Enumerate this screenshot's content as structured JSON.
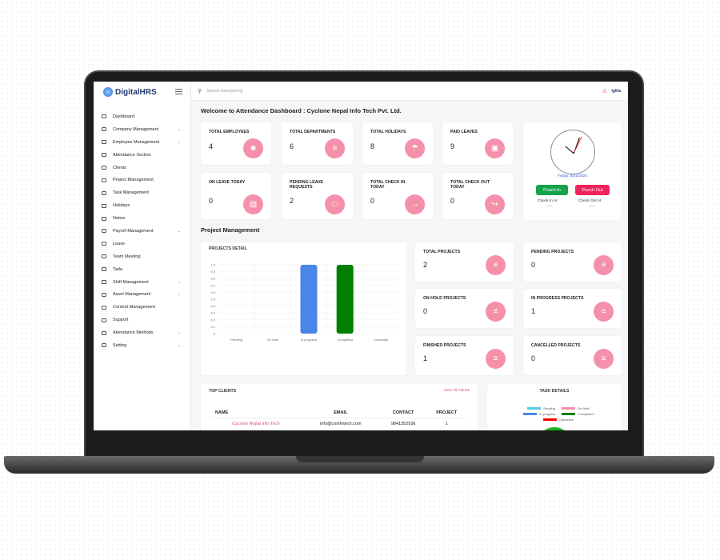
{
  "app": {
    "logo": "DigitalHRS",
    "search_placeholder": "Search menu(ctrl+q)",
    "user": "Iglita"
  },
  "sidebar": {
    "items": [
      {
        "label": "Dashboard",
        "chev": false
      },
      {
        "label": "Company Management",
        "chev": true
      },
      {
        "label": "Employee Management",
        "chev": true
      },
      {
        "label": "Attendance Section",
        "chev": false
      },
      {
        "label": "Clients",
        "chev": false
      },
      {
        "label": "Project Management",
        "chev": false
      },
      {
        "label": "Task Management",
        "chev": false
      },
      {
        "label": "Holidays",
        "chev": false
      },
      {
        "label": "Notice",
        "chev": false
      },
      {
        "label": "Payroll Management",
        "chev": true
      },
      {
        "label": "Leave",
        "chev": false
      },
      {
        "label": "Team Meeting",
        "chev": false
      },
      {
        "label": "Tada",
        "chev": false
      },
      {
        "label": "Shift Management",
        "chev": true
      },
      {
        "label": "Asset Management",
        "chev": true
      },
      {
        "label": "Content Management",
        "chev": false
      },
      {
        "label": "Support",
        "chev": false
      },
      {
        "label": "Attendance Methods",
        "chev": true
      },
      {
        "label": "Setting",
        "chev": true
      }
    ]
  },
  "welcome": "Welcome to Attendance Dashboard : Cyclone Nepal Info Tech Pvt. Ltd.",
  "stats": [
    {
      "label": "TOTAL EMPLOYEES",
      "value": "4",
      "icon": "users-icon"
    },
    {
      "label": "TOTAL DEPARTMENTS",
      "value": "6",
      "icon": "layers-icon"
    },
    {
      "label": "TOTAL HOLIDAYS",
      "value": "8",
      "icon": "umbrella-icon"
    },
    {
      "label": "PAID LEAVES",
      "value": "9",
      "icon": "document-icon"
    },
    {
      "label": "ON LEAVE TODAY",
      "value": "0",
      "icon": "file-icon"
    },
    {
      "label": "PENDING LEAVE REQUESTS",
      "value": "2",
      "icon": "message-icon"
    },
    {
      "label": "TOTAL CHECK IN TODAY",
      "value": "0",
      "icon": "login-icon"
    },
    {
      "label": "TOTAL CHECK OUT TODAY",
      "value": "0",
      "icon": "logout-icon"
    }
  ],
  "clock": {
    "date": "Friday, 5/31/2024",
    "punch_in": "Punch In",
    "punch_out": "Punch Out",
    "check_in_label": "Check In At",
    "check_out_label": "Check Out At",
    "check_in_value": "-:-:-",
    "check_out_value": "-:-:-",
    "punch_in_color": "#16a34a",
    "punch_out_color": "#f0245a"
  },
  "project_section": "Project Management",
  "projects_detail_title": "PROJECTS DETAIL",
  "project_stats": [
    {
      "label": "TOTAL PROJECTS",
      "value": "2"
    },
    {
      "label": "PENDING PROJECTS",
      "value": "0"
    },
    {
      "label": "ON HOLD PROJECTS",
      "value": "0"
    },
    {
      "label": "IN PROGRESS PROJECTS",
      "value": "1"
    },
    {
      "label": "FINISHED PROJECTS",
      "value": "1"
    },
    {
      "label": "CANCELLED PROJECTS",
      "value": "0"
    }
  ],
  "chart_data": {
    "type": "bar",
    "categories": [
      "Pending",
      "On Hold",
      "In progress",
      "Completed",
      "Cancelled"
    ],
    "values": [
      0,
      0,
      1,
      1,
      0
    ],
    "colors": [
      "#4dd0e1",
      "#f48fb1",
      "#4a86e8",
      "#008000",
      "#ff0000"
    ],
    "ylim": [
      0,
      1
    ],
    "yticks": [
      "0",
      "0.1",
      "0.2",
      "0.3",
      "0.4",
      "0.5",
      "0.6",
      "0.7",
      "0.8",
      "0.9",
      "1.0"
    ],
    "grid": true
  },
  "top_clients": {
    "title": "TOP CLIENTS",
    "view_all": "View All Clients",
    "columns": [
      "NAME",
      "EMAIL",
      "CONTACT",
      "PROJECT"
    ],
    "rows": [
      [
        "Cyclone Nepal Info Tech",
        "info@cninfotech.com",
        "9841352936",
        "1"
      ]
    ]
  },
  "task_details": {
    "title": "TASK DETAILS",
    "legend": [
      "Pending",
      "On Hold",
      "In progress",
      "Completed",
      "Cancelled"
    ]
  }
}
